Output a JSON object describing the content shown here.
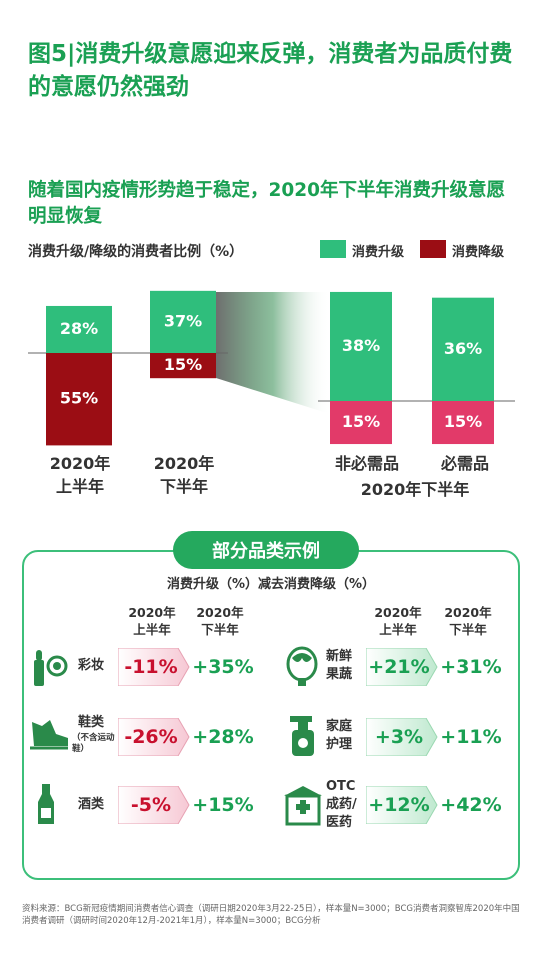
{
  "title": "图5|消费升级意愿迎来反弹，消费者为品质付费的意愿仍然强劲",
  "subtitle": "随着国内疫情形势趋于稳定，2020年下半年消费升级意愿明显恢复",
  "colors": {
    "upgrade": "#2fbe7c",
    "downgrade": "#9b0d14",
    "downgrade_pink": "#e23a69",
    "accent": "#1aa053"
  },
  "chart_data": {
    "type": "bar",
    "title": "消费升级/降级的消费者比例（%）",
    "categories": [
      "2020年上半年",
      "2020年下半年",
      "非必需品",
      "必需品"
    ],
    "category_lines": [
      [
        "2020年",
        "上半年"
      ],
      [
        "2020年",
        "下半年"
      ],
      [
        "非必需品"
      ],
      [
        "必需品"
      ]
    ],
    "group_label": "2020年下半年",
    "series": [
      {
        "name": "消费升级",
        "values": [
          28,
          37,
          38,
          36
        ],
        "labels": [
          "28%",
          "37%",
          "38%",
          "36%"
        ]
      },
      {
        "name": "消费降级",
        "values": [
          55,
          15,
          15,
          15
        ],
        "labels": [
          "55%",
          "15%",
          "15%",
          "15%"
        ]
      }
    ]
  },
  "panel": {
    "title": "部分品类示例",
    "subtitle": "消费升级（%）减去消费降级（%）",
    "col_h1_lines": [
      "2020年",
      "上半年"
    ],
    "col_h2_lines": [
      "2020年",
      "下半年"
    ],
    "items": [
      {
        "icon": "makeup-icon",
        "label_lines": [
          "彩妆"
        ],
        "note": "",
        "h1": "-11%",
        "h2": "+35%"
      },
      {
        "icon": "shoe-icon",
        "label_lines": [
          "鞋类"
        ],
        "note": "（不含运动鞋）",
        "h1": "-26%",
        "h2": "+28%"
      },
      {
        "icon": "wine-icon",
        "label_lines": [
          "酒类"
        ],
        "note": "",
        "h1": "-5%",
        "h2": "+15%"
      },
      {
        "icon": "vegetable-icon",
        "label_lines": [
          "新鲜",
          "果蔬"
        ],
        "note": "",
        "h1": "+21%",
        "h2": "+31%"
      },
      {
        "icon": "spray-bottle-icon",
        "label_lines": [
          "家庭",
          "护理"
        ],
        "note": "",
        "h1": "+3%",
        "h2": "+11%"
      },
      {
        "icon": "pharmacy-icon",
        "label_lines": [
          "OTC",
          "成药/",
          "医药"
        ],
        "note": "",
        "h1": "+12%",
        "h2": "+42%"
      }
    ]
  },
  "footer": "资料来源：BCG新冠疫情期间消费者信心调查（调研日期2020年3月22-25日），样本量N=3000；BCG消费者洞察智库2020年中国消费者调研（调研时间2020年12月-2021年1月），样本量N=3000；BCG分析"
}
